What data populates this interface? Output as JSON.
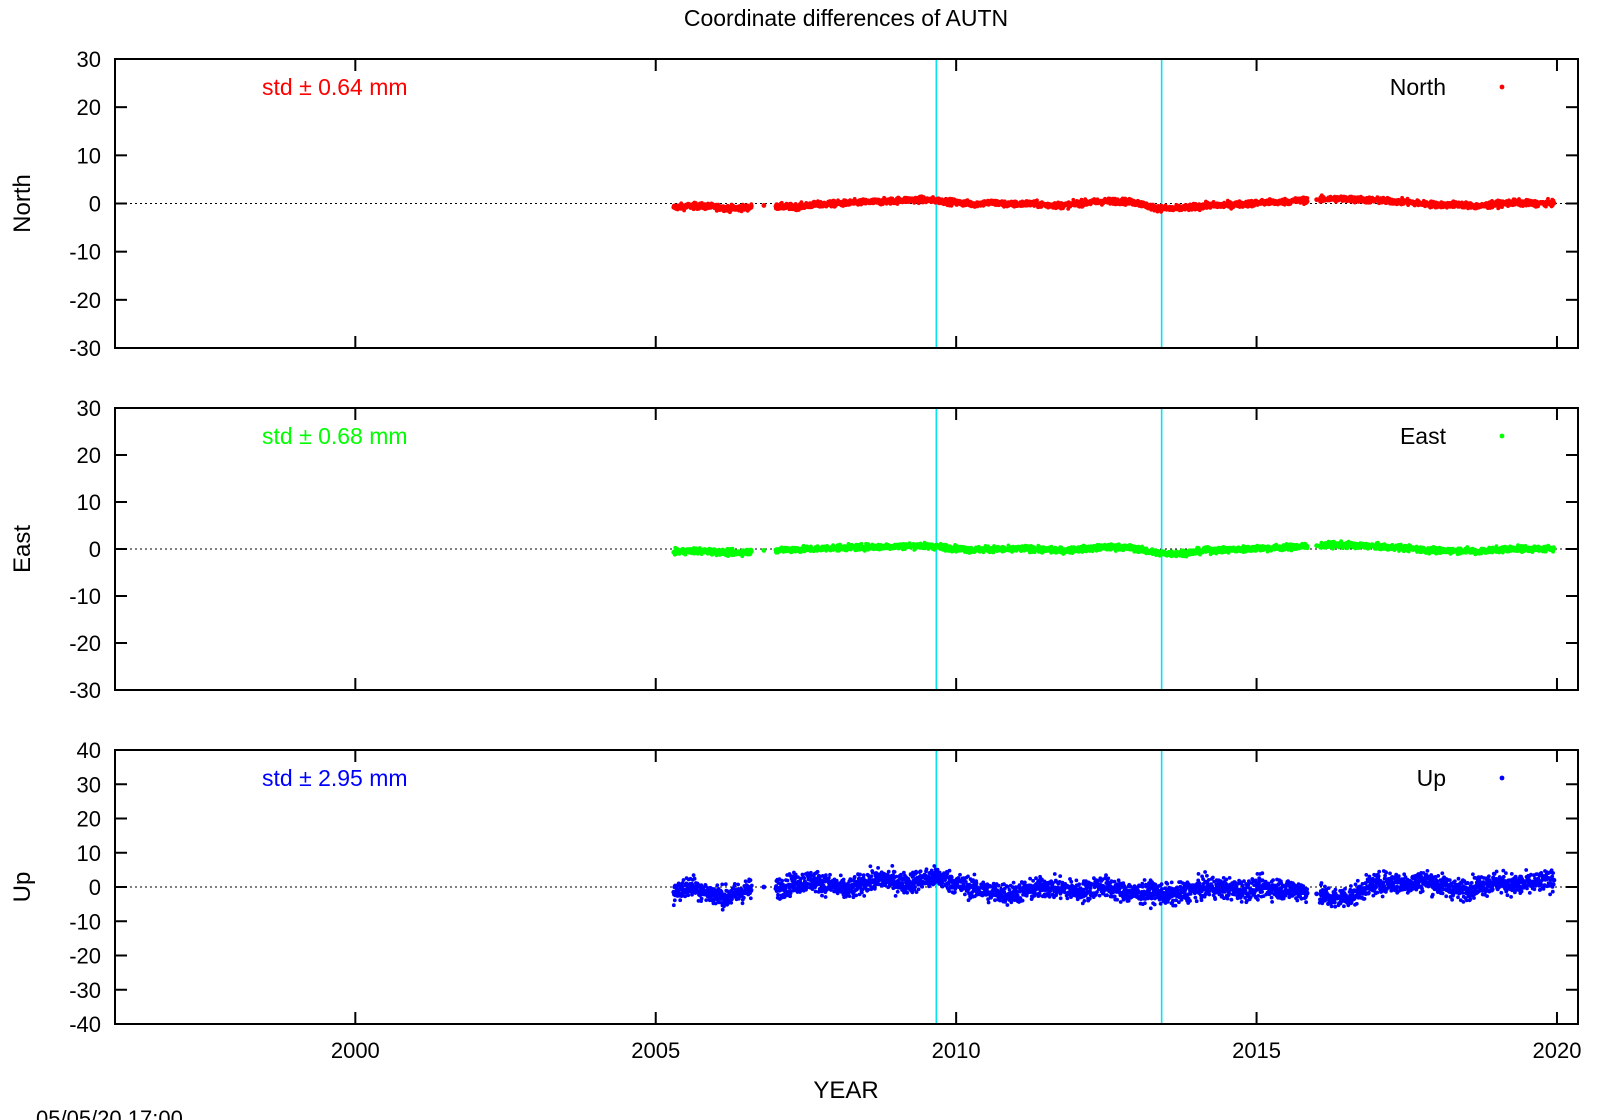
{
  "colors": {
    "north": "#ff0000",
    "east": "#00ff00",
    "up": "#0000ff",
    "event_line": "#00e5ee",
    "axis": "#000000"
  },
  "chart_data": {
    "type": "scatter",
    "title": "Coordinate differences of AUTN",
    "xlabel": "YEAR",
    "xlim": [
      1996.0,
      2020.35
    ],
    "xticks": [
      "2000",
      "2005",
      "2010",
      "2015",
      "2020"
    ],
    "xtick_values": [
      2000,
      2005,
      2010,
      2015,
      2020
    ],
    "timestamp": "05/05/20 17:00",
    "event_lines": [
      2009.67,
      2013.42
    ],
    "zero_line": "dotted",
    "grid": false,
    "legend_position": "top-right",
    "panels": [
      {
        "name": "North",
        "ylabel": "North",
        "ylim": [
          -30,
          30
        ],
        "yticks": [
          "30",
          "20",
          "10",
          "0",
          "-10",
          "-20",
          "-30"
        ],
        "ytick_values": [
          30,
          20,
          10,
          0,
          -10,
          -20,
          -30
        ],
        "std_text": "std ± 0.64 mm",
        "legend": "North",
        "color": "#ff0000",
        "x": [
          2005.3,
          2005.6,
          2005.9,
          2006.2,
          2006.5,
          2006.8,
          2007.0,
          2007.3,
          2007.6,
          2007.9,
          2008.2,
          2008.5,
          2008.8,
          2009.1,
          2009.4,
          2009.7,
          2010.0,
          2010.3,
          2010.6,
          2010.9,
          2011.2,
          2011.5,
          2011.8,
          2012.1,
          2012.4,
          2012.7,
          2013.0,
          2013.3,
          2013.6,
          2013.9,
          2014.2,
          2014.5,
          2014.8,
          2015.1,
          2015.4,
          2015.7,
          2016.0,
          2016.3,
          2016.6,
          2016.9,
          2017.2,
          2017.5,
          2017.8,
          2018.1,
          2018.4,
          2018.7,
          2019.0,
          2019.3,
          2019.6,
          2019.95
        ],
        "values": [
          -0.8,
          -0.5,
          -0.6,
          -1.0,
          -0.9,
          -0.4,
          -0.6,
          -0.7,
          -0.3,
          -0.1,
          0.1,
          0.3,
          0.4,
          0.7,
          0.8,
          0.6,
          0.2,
          -0.1,
          0.2,
          -0.2,
          0.0,
          -0.3,
          -0.4,
          0.1,
          0.4,
          0.5,
          0.2,
          -0.9,
          -1.1,
          -0.8,
          -0.4,
          -0.3,
          -0.1,
          0.2,
          0.3,
          0.6,
          0.8,
          1.0,
          0.9,
          0.7,
          0.5,
          0.3,
          -0.1,
          -0.3,
          -0.2,
          -0.6,
          -0.1,
          0.2,
          0.0,
          0.1
        ]
      },
      {
        "name": "East",
        "ylabel": "East",
        "ylim": [
          -30,
          30
        ],
        "yticks": [
          "30",
          "20",
          "10",
          "0",
          "-10",
          "-20",
          "-30"
        ],
        "ytick_values": [
          30,
          20,
          10,
          0,
          -10,
          -20,
          -30
        ],
        "std_text": "std ± 0.68 mm",
        "legend": "East",
        "color": "#00ff00",
        "x": [
          2005.3,
          2005.6,
          2005.9,
          2006.2,
          2006.5,
          2006.8,
          2007.0,
          2007.3,
          2007.6,
          2007.9,
          2008.2,
          2008.5,
          2008.8,
          2009.1,
          2009.4,
          2009.7,
          2010.0,
          2010.3,
          2010.6,
          2010.9,
          2011.2,
          2011.5,
          2011.8,
          2012.1,
          2012.4,
          2012.7,
          2013.0,
          2013.3,
          2013.6,
          2013.9,
          2014.2,
          2014.5,
          2014.8,
          2015.1,
          2015.4,
          2015.7,
          2016.0,
          2016.3,
          2016.6,
          2016.9,
          2017.2,
          2017.5,
          2017.8,
          2018.1,
          2018.4,
          2018.7,
          2019.0,
          2019.3,
          2019.6,
          2019.95
        ],
        "values": [
          -0.7,
          -0.4,
          -0.5,
          -0.8,
          -0.7,
          -0.3,
          -0.2,
          -0.1,
          0.0,
          0.2,
          0.3,
          0.4,
          0.5,
          0.6,
          0.7,
          0.5,
          0.1,
          -0.2,
          0.0,
          -0.1,
          0.1,
          -0.2,
          -0.3,
          0.0,
          0.3,
          0.4,
          0.1,
          -0.8,
          -1.0,
          -0.7,
          -0.3,
          -0.2,
          0.0,
          0.2,
          0.3,
          0.5,
          0.7,
          0.9,
          0.8,
          0.6,
          0.4,
          0.2,
          -0.2,
          -0.4,
          -0.3,
          -0.5,
          -0.1,
          0.1,
          0.0,
          0.1
        ]
      },
      {
        "name": "Up",
        "ylabel": "Up",
        "ylim": [
          -40,
          40
        ],
        "yticks": [
          "40",
          "30",
          "20",
          "10",
          "0",
          "-10",
          "-20",
          "-30",
          "-40"
        ],
        "ytick_values": [
          40,
          30,
          20,
          10,
          0,
          -10,
          -20,
          -30,
          -40
        ],
        "std_text": "std ± 2.95 mm",
        "legend": "Up",
        "color": "#0000ff",
        "x": [
          2005.3,
          2005.6,
          2005.9,
          2006.2,
          2006.5,
          2006.8,
          2007.0,
          2007.3,
          2007.6,
          2007.9,
          2008.2,
          2008.5,
          2008.8,
          2009.1,
          2009.4,
          2009.7,
          2010.0,
          2010.3,
          2010.6,
          2010.9,
          2011.2,
          2011.5,
          2011.8,
          2012.1,
          2012.4,
          2012.7,
          2013.0,
          2013.3,
          2013.6,
          2013.9,
          2014.2,
          2014.5,
          2014.8,
          2015.1,
          2015.4,
          2015.7,
          2016.0,
          2016.3,
          2016.6,
          2016.9,
          2017.2,
          2017.5,
          2017.8,
          2018.1,
          2018.4,
          2018.7,
          2019.0,
          2019.3,
          2019.6,
          2019.95
        ],
        "values": [
          -1.5,
          0.5,
          -2.0,
          -3.0,
          -1.0,
          0.0,
          -0.5,
          1.0,
          2.0,
          0.5,
          -1.0,
          1.5,
          2.5,
          1.0,
          2.0,
          3.0,
          1.0,
          -0.5,
          -1.5,
          -2.0,
          -1.0,
          0.0,
          -0.5,
          -1.5,
          0.5,
          -1.0,
          -2.0,
          -1.5,
          -2.5,
          -1.0,
          0.0,
          -0.5,
          -1.0,
          0.0,
          -0.5,
          -1.0,
          -2.0,
          -3.5,
          -2.5,
          0.5,
          1.5,
          1.0,
          2.0,
          0.5,
          -1.0,
          0.5,
          1.5,
          0.5,
          1.0,
          2.0
        ]
      }
    ]
  }
}
